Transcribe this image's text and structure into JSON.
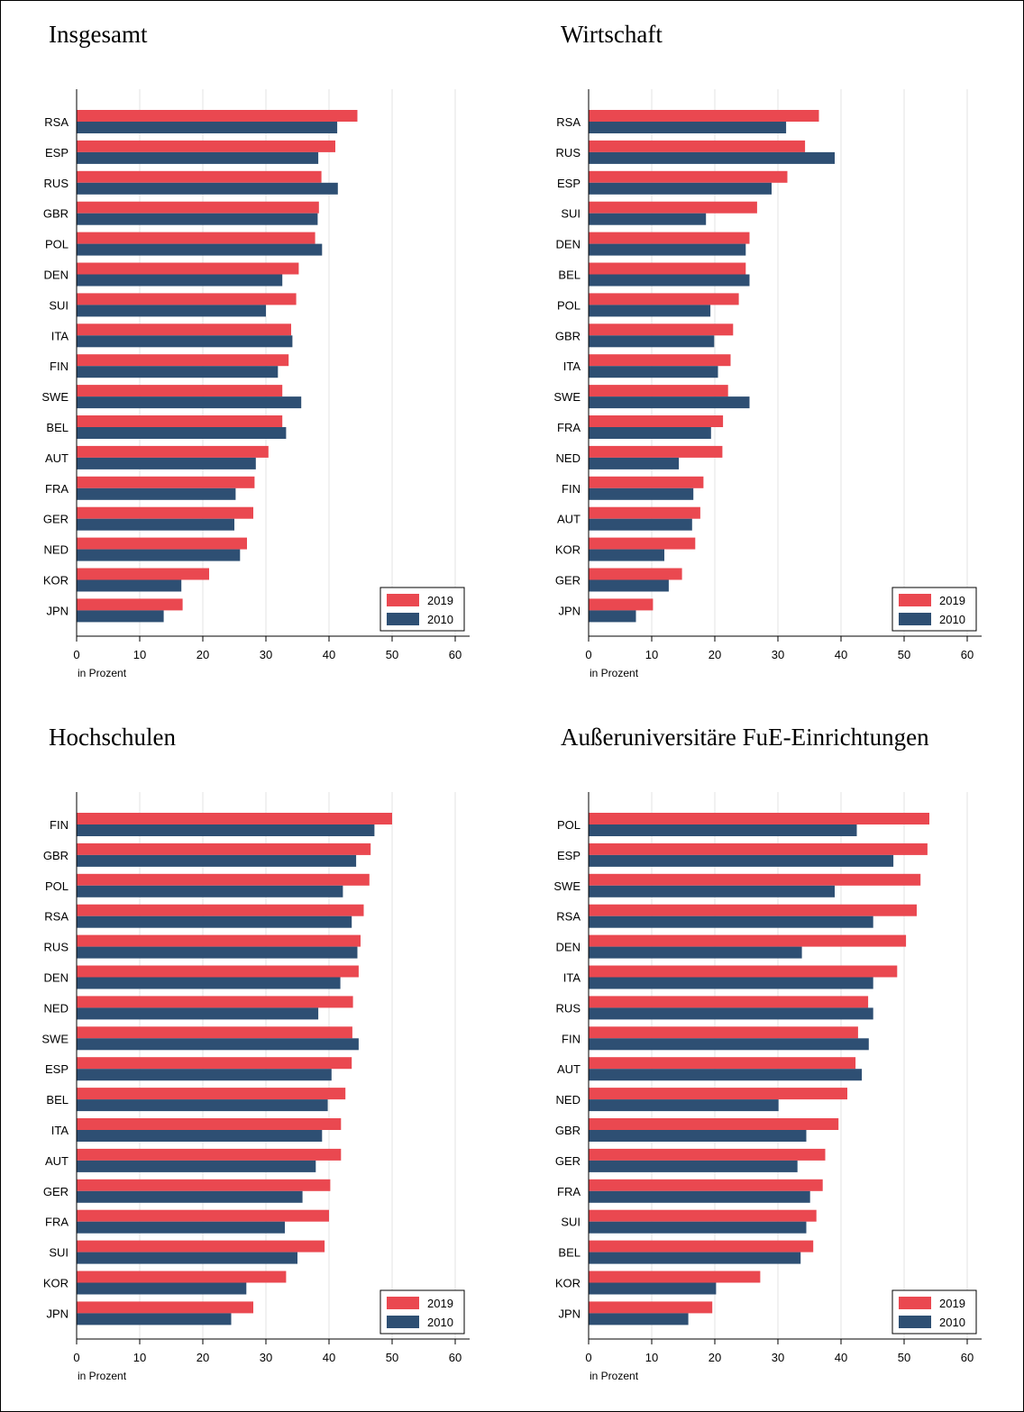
{
  "colors": {
    "series_2019": "#EA4850",
    "series_2010": "#2E4F73",
    "grid": "#E3E3E3",
    "axis": "#000000"
  },
  "chart_data": [
    {
      "type": "bar",
      "orientation": "horizontal",
      "title": "Insgesamt",
      "xlabel": "in Prozent",
      "xlim": [
        0,
        60
      ],
      "xticks": [
        0,
        10,
        20,
        30,
        40,
        50,
        60
      ],
      "grid": "vertical",
      "legend": "bottom-right",
      "categories": [
        "RSA",
        "ESP",
        "RUS",
        "GBR",
        "POL",
        "DEN",
        "SUI",
        "ITA",
        "FIN",
        "SWE",
        "BEL",
        "AUT",
        "FRA",
        "GER",
        "NED",
        "KOR",
        "JPN"
      ],
      "series": [
        {
          "name": "2019",
          "values": [
            44.5,
            41.0,
            38.8,
            38.4,
            37.8,
            35.2,
            34.8,
            34.0,
            33.6,
            32.6,
            32.6,
            30.4,
            28.2,
            28.0,
            27.0,
            21.0,
            16.8
          ]
        },
        {
          "name": "2010",
          "values": [
            41.3,
            38.3,
            41.4,
            38.2,
            38.9,
            32.6,
            30.0,
            34.2,
            31.9,
            35.6,
            33.2,
            28.4,
            25.2,
            25.0,
            25.9,
            16.6,
            13.8
          ]
        }
      ]
    },
    {
      "type": "bar",
      "orientation": "horizontal",
      "title": "Wirtschaft",
      "xlabel": "in Prozent",
      "xlim": [
        0,
        60
      ],
      "xticks": [
        0,
        10,
        20,
        30,
        40,
        50,
        60
      ],
      "grid": "vertical",
      "legend": "bottom-right",
      "categories": [
        "RSA",
        "RUS",
        "ESP",
        "SUI",
        "DEN",
        "BEL",
        "POL",
        "GBR",
        "ITA",
        "SWE",
        "FRA",
        "NED",
        "FIN",
        "AUT",
        "KOR",
        "GER",
        "JPN"
      ],
      "series": [
        {
          "name": "2019",
          "values": [
            36.5,
            34.3,
            31.5,
            26.7,
            25.5,
            24.9,
            23.8,
            22.9,
            22.5,
            22.1,
            21.3,
            21.2,
            18.2,
            17.7,
            16.9,
            14.8,
            10.2
          ]
        },
        {
          "name": "2010",
          "values": [
            31.3,
            39.0,
            29.0,
            18.6,
            24.9,
            25.5,
            19.3,
            19.9,
            20.5,
            25.5,
            19.4,
            14.3,
            16.6,
            16.4,
            12.0,
            12.7,
            7.5
          ]
        }
      ]
    },
    {
      "type": "bar",
      "orientation": "horizontal",
      "title": "Hochschulen",
      "xlabel": "in Prozent",
      "xlim": [
        0,
        60
      ],
      "xticks": [
        0,
        10,
        20,
        30,
        40,
        50,
        60
      ],
      "grid": "vertical",
      "legend": "bottom-right",
      "categories": [
        "FIN",
        "GBR",
        "POL",
        "RSA",
        "RUS",
        "DEN",
        "NED",
        "SWE",
        "ESP",
        "BEL",
        "ITA",
        "AUT",
        "GER",
        "FRA",
        "SUI",
        "KOR",
        "JPN"
      ],
      "series": [
        {
          "name": "2019",
          "values": [
            50.0,
            46.6,
            46.4,
            45.5,
            45.0,
            44.7,
            43.8,
            43.7,
            43.6,
            42.6,
            41.9,
            41.9,
            40.2,
            40.0,
            39.3,
            33.2,
            28.0
          ]
        },
        {
          "name": "2010",
          "values": [
            47.2,
            44.3,
            42.2,
            43.6,
            44.5,
            41.8,
            38.3,
            44.7,
            40.4,
            39.8,
            38.9,
            37.9,
            35.8,
            33.0,
            35.0,
            26.9,
            24.5
          ]
        }
      ]
    },
    {
      "type": "bar",
      "orientation": "horizontal",
      "title": "Außeruniversitäre FuE-Einrichtungen",
      "xlabel": "in Prozent",
      "xlim": [
        0,
        60
      ],
      "xticks": [
        0,
        10,
        20,
        30,
        40,
        50,
        60
      ],
      "grid": "vertical",
      "legend": "bottom-right",
      "categories": [
        "POL",
        "ESP",
        "SWE",
        "RSA",
        "DEN",
        "ITA",
        "RUS",
        "FIN",
        "AUT",
        "NED",
        "GBR",
        "GER",
        "FRA",
        "SUI",
        "BEL",
        "KOR",
        "JPN"
      ],
      "series": [
        {
          "name": "2019",
          "values": [
            54.0,
            53.7,
            52.6,
            52.0,
            50.3,
            48.9,
            44.3,
            42.7,
            42.3,
            41.0,
            39.6,
            37.5,
            37.1,
            36.1,
            35.6,
            27.2,
            19.6
          ]
        },
        {
          "name": "2010",
          "values": [
            42.5,
            48.3,
            39.0,
            45.1,
            33.8,
            45.1,
            45.1,
            44.4,
            43.3,
            30.1,
            34.5,
            33.1,
            35.1,
            34.5,
            33.6,
            20.2,
            15.8
          ]
        }
      ]
    }
  ]
}
